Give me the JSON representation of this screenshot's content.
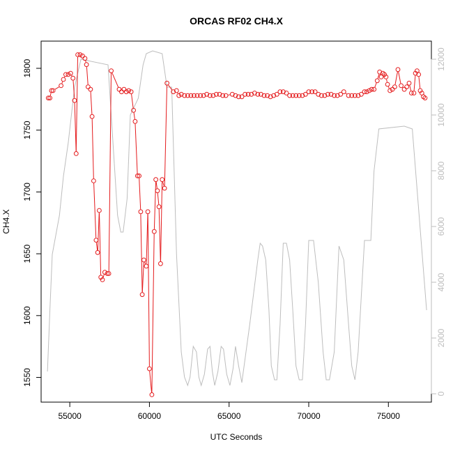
{
  "chart_data": {
    "type": "line",
    "title": "ORCAS RF02 CH4.X",
    "xlabel": "UTC Seconds",
    "ylabel": "CH4.X",
    "xlim": [
      53200,
      77700
    ],
    "ylim": [
      1530,
      1822
    ],
    "y2lim": [
      -300,
      12650
    ],
    "x_ticks": [
      55000,
      60000,
      65000,
      70000,
      75000
    ],
    "y_ticks": [
      1550,
      1600,
      1650,
      1700,
      1750,
      1800
    ],
    "y2_ticks": [
      0,
      2000,
      4000,
      6000,
      8000,
      10000,
      12000
    ],
    "colors": {
      "series": "#e41a1c",
      "secondary": "#bdbdbd",
      "axis": "#000000"
    },
    "series": [
      {
        "role": "primary",
        "points": [
          [
            53650,
            1776
          ],
          [
            53750,
            1776
          ],
          [
            53850,
            1782
          ],
          [
            53950,
            1782
          ],
          [
            54450,
            1786
          ],
          [
            54600,
            1791
          ],
          [
            54750,
            1795
          ],
          [
            54900,
            1795
          ],
          [
            55050,
            1796
          ],
          [
            55200,
            1792
          ],
          [
            55300,
            1774
          ],
          [
            55400,
            1731
          ],
          [
            55500,
            1811
          ],
          [
            55650,
            1811
          ],
          [
            55800,
            1810
          ],
          [
            55950,
            1808
          ],
          [
            56050,
            1803
          ],
          [
            56150,
            1785
          ],
          [
            56300,
            1783
          ],
          [
            56400,
            1761
          ],
          [
            56500,
            1709
          ],
          [
            56650,
            1661
          ],
          [
            56750,
            1651
          ],
          [
            56850,
            1685
          ],
          [
            56950,
            1631
          ],
          [
            57050,
            1629
          ],
          [
            57200,
            1635
          ],
          [
            57350,
            1634
          ],
          [
            57450,
            1634
          ],
          [
            57600,
            1798
          ],
          [
            58100,
            1783
          ],
          [
            58250,
            1781
          ],
          [
            58400,
            1783
          ],
          [
            58550,
            1781
          ],
          [
            58700,
            1782
          ],
          [
            58850,
            1781
          ],
          [
            59000,
            1766
          ],
          [
            59100,
            1757
          ],
          [
            59250,
            1713
          ],
          [
            59350,
            1713
          ],
          [
            59450,
            1684
          ],
          [
            59550,
            1617
          ],
          [
            59650,
            1645
          ],
          [
            59800,
            1640
          ],
          [
            59900,
            1684
          ],
          [
            60000,
            1557
          ],
          [
            60150,
            1536
          ],
          [
            60300,
            1668
          ],
          [
            60400,
            1710
          ],
          [
            60500,
            1701
          ],
          [
            60600,
            1688
          ],
          [
            60700,
            1642
          ],
          [
            60800,
            1710
          ],
          [
            60950,
            1703
          ],
          [
            61100,
            1788
          ],
          [
            61500,
            1781
          ],
          [
            61700,
            1782
          ],
          [
            61850,
            1778
          ],
          [
            62000,
            1779
          ],
          [
            62200,
            1778
          ],
          [
            62400,
            1778
          ],
          [
            62600,
            1778
          ],
          [
            62800,
            1778
          ],
          [
            63000,
            1778
          ],
          [
            63200,
            1778
          ],
          [
            63400,
            1778
          ],
          [
            63600,
            1779
          ],
          [
            63800,
            1778
          ],
          [
            64000,
            1778
          ],
          [
            64200,
            1779
          ],
          [
            64400,
            1779
          ],
          [
            64600,
            1778
          ],
          [
            64800,
            1778
          ],
          [
            65200,
            1779
          ],
          [
            65400,
            1778
          ],
          [
            65600,
            1777
          ],
          [
            65800,
            1777
          ],
          [
            66000,
            1779
          ],
          [
            66200,
            1779
          ],
          [
            66400,
            1779
          ],
          [
            66600,
            1780
          ],
          [
            66800,
            1779
          ],
          [
            67000,
            1779
          ],
          [
            67200,
            1778
          ],
          [
            67400,
            1778
          ],
          [
            67600,
            1777
          ],
          [
            67800,
            1778
          ],
          [
            68000,
            1779
          ],
          [
            68200,
            1781
          ],
          [
            68400,
            1781
          ],
          [
            68600,
            1780
          ],
          [
            68800,
            1778
          ],
          [
            69000,
            1778
          ],
          [
            69200,
            1778
          ],
          [
            69400,
            1778
          ],
          [
            69600,
            1778
          ],
          [
            69800,
            1779
          ],
          [
            70000,
            1781
          ],
          [
            70200,
            1781
          ],
          [
            70400,
            1781
          ],
          [
            70600,
            1779
          ],
          [
            70800,
            1778
          ],
          [
            71000,
            1778
          ],
          [
            71200,
            1779
          ],
          [
            71400,
            1779
          ],
          [
            71600,
            1778
          ],
          [
            71800,
            1778
          ],
          [
            72000,
            1779
          ],
          [
            72200,
            1781
          ],
          [
            72500,
            1778
          ],
          [
            72700,
            1778
          ],
          [
            72900,
            1778
          ],
          [
            73100,
            1778
          ],
          [
            73300,
            1779
          ],
          [
            73500,
            1781
          ],
          [
            73650,
            1781
          ],
          [
            73800,
            1782
          ],
          [
            73950,
            1783
          ],
          [
            74100,
            1783
          ],
          [
            74300,
            1790
          ],
          [
            74450,
            1797
          ],
          [
            74550,
            1793
          ],
          [
            74650,
            1796
          ],
          [
            74750,
            1795
          ],
          [
            74850,
            1793
          ],
          [
            74950,
            1787
          ],
          [
            75100,
            1782
          ],
          [
            75250,
            1783
          ],
          [
            75400,
            1785
          ],
          [
            75600,
            1799
          ],
          [
            75800,
            1786
          ],
          [
            76000,
            1783
          ],
          [
            76150,
            1785
          ],
          [
            76300,
            1788
          ],
          [
            76450,
            1780
          ],
          [
            76600,
            1780
          ],
          [
            76700,
            1796
          ],
          [
            76800,
            1798
          ],
          [
            76900,
            1795
          ],
          [
            77000,
            1782
          ],
          [
            77100,
            1780
          ],
          [
            77200,
            1777
          ],
          [
            77300,
            1776
          ]
        ]
      },
      {
        "role": "secondary",
        "points": [
          [
            53600,
            800
          ],
          [
            53750,
            3000
          ],
          [
            53900,
            5000
          ],
          [
            54350,
            6400
          ],
          [
            54600,
            7800
          ],
          [
            54900,
            9000
          ],
          [
            55300,
            11000
          ],
          [
            55700,
            12000
          ],
          [
            57400,
            11800
          ],
          [
            57600,
            10000
          ],
          [
            58000,
            6400
          ],
          [
            58200,
            5800
          ],
          [
            58350,
            5800
          ],
          [
            58600,
            7000
          ],
          [
            58800,
            10000
          ],
          [
            59300,
            10600
          ],
          [
            59600,
            11800
          ],
          [
            59800,
            12200
          ],
          [
            60200,
            12300
          ],
          [
            60800,
            12200
          ],
          [
            61100,
            11000
          ],
          [
            61400,
            11000
          ],
          [
            61700,
            5000
          ],
          [
            62000,
            1500
          ],
          [
            62200,
            600
          ],
          [
            62400,
            300
          ],
          [
            62550,
            600
          ],
          [
            62750,
            1700
          ],
          [
            62950,
            1500
          ],
          [
            63100,
            600
          ],
          [
            63250,
            300
          ],
          [
            63450,
            700
          ],
          [
            63650,
            1600
          ],
          [
            63800,
            1700
          ],
          [
            63950,
            800
          ],
          [
            64100,
            300
          ],
          [
            64300,
            800
          ],
          [
            64500,
            1700
          ],
          [
            64650,
            1600
          ],
          [
            64850,
            700
          ],
          [
            65050,
            300
          ],
          [
            65250,
            900
          ],
          [
            65400,
            1700
          ],
          [
            65600,
            1000
          ],
          [
            65800,
            400
          ],
          [
            66300,
            2500
          ],
          [
            66800,
            4800
          ],
          [
            66950,
            5400
          ],
          [
            67100,
            5300
          ],
          [
            67300,
            4800
          ],
          [
            67500,
            3000
          ],
          [
            67650,
            1000
          ],
          [
            67850,
            500
          ],
          [
            68000,
            500
          ],
          [
            68200,
            2500
          ],
          [
            68400,
            5400
          ],
          [
            68600,
            5400
          ],
          [
            68800,
            4800
          ],
          [
            69000,
            3000
          ],
          [
            69200,
            1000
          ],
          [
            69400,
            500
          ],
          [
            69600,
            500
          ],
          [
            69800,
            2500
          ],
          [
            70000,
            5500
          ],
          [
            70300,
            5500
          ],
          [
            70600,
            4000
          ],
          [
            70900,
            1500
          ],
          [
            71100,
            500
          ],
          [
            71300,
            500
          ],
          [
            71600,
            1500
          ],
          [
            71900,
            5300
          ],
          [
            72200,
            4800
          ],
          [
            72500,
            2500
          ],
          [
            72700,
            1000
          ],
          [
            72900,
            500
          ],
          [
            73100,
            1500
          ],
          [
            73300,
            3500
          ],
          [
            73500,
            5500
          ],
          [
            73700,
            5500
          ],
          [
            73900,
            5500
          ],
          [
            74100,
            8000
          ],
          [
            74400,
            9500
          ],
          [
            76000,
            9600
          ],
          [
            76500,
            9500
          ],
          [
            77400,
            3000
          ]
        ]
      }
    ]
  }
}
